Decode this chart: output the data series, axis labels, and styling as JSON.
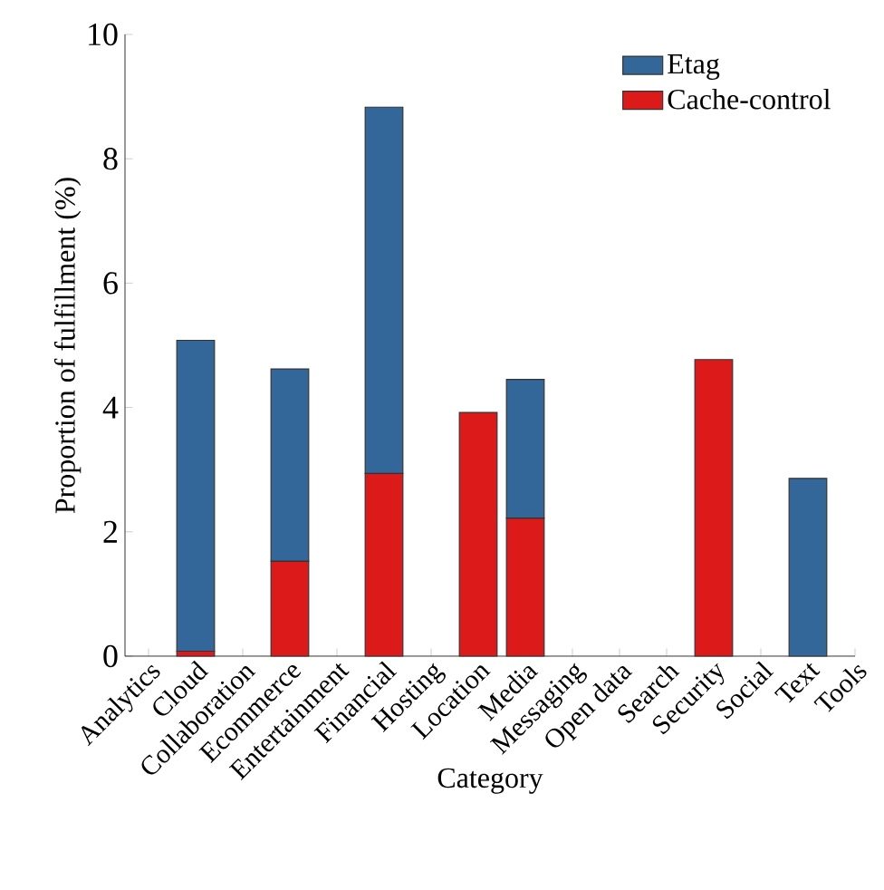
{
  "chart_data": {
    "type": "bar",
    "stacked": true,
    "xlabel": "Category",
    "ylabel": "Proportion of fulfillment (%)",
    "categories": [
      "Analytics",
      "Cloud",
      "Collaboration",
      "Ecommerce",
      "Entertainment",
      "Financial",
      "Hosting",
      "Location",
      "Media",
      "Messaging",
      "Open data",
      "Search",
      "Security",
      "Social",
      "Text",
      "Tools"
    ],
    "series": [
      {
        "name": "Cache-control",
        "color": "#dd1a1a",
        "values": [
          null,
          0.08,
          null,
          1.53,
          null,
          2.94,
          null,
          3.92,
          2.22,
          null,
          null,
          null,
          4.77,
          null,
          null,
          null
        ]
      },
      {
        "name": "Etag",
        "color": "#336699",
        "values": [
          null,
          5.0,
          null,
          3.09,
          null,
          5.89,
          null,
          null,
          2.23,
          null,
          null,
          null,
          null,
          null,
          2.86,
          null
        ]
      }
    ],
    "ylim": [
      0,
      10
    ],
    "yticks": [
      0,
      2,
      4,
      6,
      8,
      10
    ],
    "legend": "top right",
    "grid": false
  }
}
